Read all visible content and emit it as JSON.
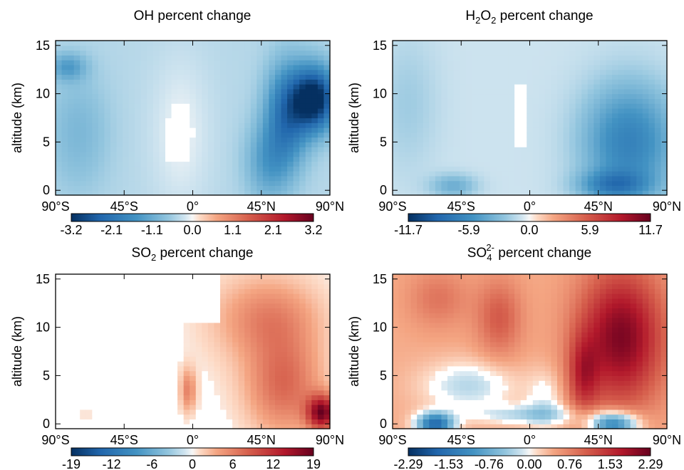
{
  "chart_data": [
    {
      "type": "heatmap",
      "title_main": "OH",
      "title_suffix": " percent change",
      "ylabel": "altitude (km)",
      "x_ticks": [
        "90°S",
        "45°S",
        "0°",
        "45°N",
        "90°N"
      ],
      "x_values": [
        -90,
        -45,
        0,
        45,
        90
      ],
      "y_ticks": [
        "0",
        "5",
        "10",
        "15"
      ],
      "y_values": [
        0,
        5,
        10,
        15
      ],
      "xlim": [
        -90,
        90
      ],
      "ylim": [
        -0.5,
        15.5
      ],
      "colorbar_ticks": [
        "-3.2",
        "-2.1",
        "-1.1",
        "0.0",
        "1.1",
        "2.1",
        "3.2"
      ],
      "colorbar_range": [
        -3.2,
        3.2
      ],
      "colormap": "blue-white-red",
      "field_summary": "negative (blue) everywhere; strongest decrease ~-3.2 near 80°N at 8-11 km; near zero in the tropics"
    },
    {
      "type": "heatmap",
      "title_main": "H",
      "title_sub1": "2",
      "title_mid": "O",
      "title_sub2": "2",
      "title_suffix": " percent change",
      "ylabel": "altitude (km)",
      "x_ticks": [
        "90°S",
        "45°S",
        "0°",
        "45°N",
        "90°N"
      ],
      "x_values": [
        -90,
        -45,
        0,
        45,
        90
      ],
      "y_ticks": [
        "0",
        "5",
        "10",
        "15"
      ],
      "y_values": [
        0,
        5,
        10,
        15
      ],
      "xlim": [
        -90,
        90
      ],
      "ylim": [
        -0.5,
        15.5
      ],
      "colorbar_ticks": [
        "-11.7",
        "-5.9",
        "0.0",
        "5.9",
        "11.7"
      ],
      "colorbar_range": [
        -11.7,
        11.7
      ],
      "colormap": "blue-white-red",
      "field_summary": "negative (blue) everywhere; strongest decrease ~-11.7 in northern lower troposphere; near zero over the tropics"
    },
    {
      "type": "heatmap",
      "title_main": "SO",
      "title_sub1": "2",
      "title_suffix": " percent change",
      "ylabel": "altitude (km)",
      "x_ticks": [
        "90°S",
        "45°S",
        "0°",
        "45°N",
        "90°N"
      ],
      "x_values": [
        -90,
        -45,
        0,
        45,
        90
      ],
      "y_ticks": [
        "0",
        "5",
        "10",
        "15"
      ],
      "y_values": [
        0,
        5,
        10,
        15
      ],
      "xlim": [
        -90,
        90
      ],
      "ylim": [
        -0.5,
        15.5
      ],
      "colorbar_ticks": [
        "-19",
        "-12",
        "-6",
        "0",
        "6",
        "12",
        "19"
      ],
      "colorbar_range": [
        -19,
        19
      ],
      "colormap": "blue-white-red",
      "field_summary": "positive (red) in the north, up to ~19 near 85°N at 1 km; small positive plume near 5°S at 4 km; near zero in the south"
    },
    {
      "type": "heatmap",
      "title_main": "SO",
      "title_sub1": "4",
      "title_sup": "2-",
      "title_suffix": " percent change",
      "ylabel": "altitude (km)",
      "x_ticks": [
        "90°S",
        "45°S",
        "0°",
        "45°N",
        "90°N"
      ],
      "x_values": [
        -90,
        -45,
        0,
        45,
        90
      ],
      "y_ticks": [
        "0",
        "5",
        "10",
        "15"
      ],
      "y_values": [
        0,
        5,
        10,
        15
      ],
      "xlim": [
        -90,
        90
      ],
      "ylim": [
        -0.5,
        15.5
      ],
      "colorbar_ticks": [
        "-2.29",
        "-1.53",
        "-0.76",
        "0.00",
        "0.76",
        "1.53",
        "2.29"
      ],
      "colorbar_range": [
        -2.29,
        2.29
      ],
      "colormap": "blue-white-red",
      "field_summary": "positive (red) through most of the troposphere, max ~2.29 near 45-80°N; negative (blue) near the surface around 60°S and 55°N"
    }
  ]
}
